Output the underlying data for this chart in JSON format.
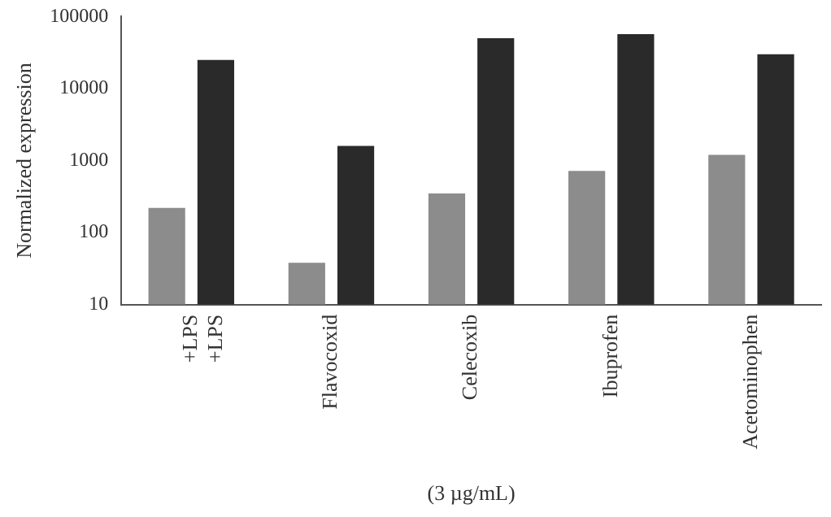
{
  "chart_data": {
    "type": "bar",
    "ylabel": "Normalized expression",
    "xlabel": "(3 µg/mL)",
    "categories": [
      "+LPS\n+LPS",
      "Flavocoxid",
      "Celecoxib",
      "Ibuprofen",
      "Acetominophen"
    ],
    "series": [
      {
        "color": "#8c8c8c",
        "values": [
          220,
          38,
          350,
          720,
          1200
        ]
      },
      {
        "color": "#2a2a2a",
        "values": [
          25000,
          1600,
          50000,
          57000,
          30000
        ]
      }
    ],
    "log": "y",
    "ylim": [
      10,
      100000
    ],
    "yticks": [
      10,
      100,
      1000,
      10000,
      100000
    ],
    "grid": false,
    "legend": false
  }
}
